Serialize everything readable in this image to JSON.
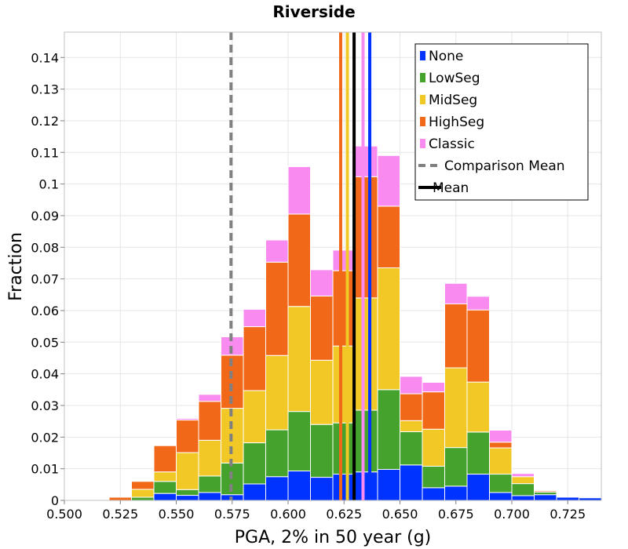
{
  "chart_data": {
    "type": "bar",
    "stacked": true,
    "title": "Riverside",
    "xlabel": "PGA, 2% in 50 year (g)",
    "ylabel": "Fraction",
    "xlim": [
      0.5,
      0.74
    ],
    "ylim": [
      0,
      0.148
    ],
    "bin_width": 0.01,
    "x_ticks": [
      0.5,
      0.525,
      0.55,
      0.575,
      0.6,
      0.625,
      0.65,
      0.675,
      0.7,
      0.725
    ],
    "x_tick_labels": [
      "0.500",
      "0.525",
      "0.550",
      "0.575",
      "0.600",
      "0.625",
      "0.650",
      "0.675",
      "0.700",
      "0.725"
    ],
    "y_ticks": [
      0,
      0.01,
      0.02,
      0.03,
      0.04,
      0.05,
      0.06,
      0.07,
      0.08,
      0.09,
      0.1,
      0.11,
      0.12,
      0.13,
      0.14
    ],
    "y_tick_labels": [
      "0",
      "0.01",
      "0.02",
      "0.03",
      "0.04",
      "0.05",
      "0.06",
      "0.07",
      "0.08",
      "0.09",
      "0.1",
      "0.11",
      "0.12",
      "0.13",
      "0.14"
    ],
    "grid": true,
    "legend_position": "top-right",
    "x": [
      0.515,
      0.525,
      0.535,
      0.545,
      0.555,
      0.565,
      0.575,
      0.585,
      0.595,
      0.605,
      0.615,
      0.625,
      0.635,
      0.645,
      0.655,
      0.665,
      0.675,
      0.685,
      0.695,
      0.705,
      0.715,
      0.725,
      0.735
    ],
    "series": [
      {
        "name": "None",
        "color": "#0033ff",
        "values": [
          0,
          0,
          0,
          0.0022,
          0.0016,
          0.0025,
          0.0018,
          0.0052,
          0.0075,
          0.0093,
          0.0073,
          0.0083,
          0.009,
          0.0098,
          0.0112,
          0.004,
          0.0045,
          0.0083,
          0.0025,
          0.0015,
          0.0018,
          0.001,
          0.0008
        ]
      },
      {
        "name": "LowSeg",
        "color": "#44a22d",
        "values": [
          0,
          0,
          0.001,
          0.0038,
          0.0018,
          0.0052,
          0.01,
          0.013,
          0.0148,
          0.0188,
          0.0167,
          0.0162,
          0.0195,
          0.0252,
          0.0105,
          0.0068,
          0.0122,
          0.0133,
          0.0058,
          0.0038,
          0.0008,
          0,
          0
        ]
      },
      {
        "name": "MidSeg",
        "color": "#f2c826",
        "values": [
          0,
          0,
          0.0025,
          0.003,
          0.0117,
          0.0113,
          0.0173,
          0.0165,
          0.0235,
          0.0332,
          0.0203,
          0.0243,
          0.0355,
          0.0385,
          0.0035,
          0.0117,
          0.0252,
          0.0158,
          0.0083,
          0.0022,
          0,
          0,
          0
        ]
      },
      {
        "name": "HighSeg",
        "color": "#f06818",
        "values": [
          0,
          0.001,
          0.0025,
          0.0083,
          0.0103,
          0.0123,
          0.0168,
          0.0202,
          0.0295,
          0.0292,
          0.0203,
          0.0238,
          0.0383,
          0.0195,
          0.0085,
          0.0118,
          0.0202,
          0.0228,
          0.0018,
          0,
          0.0004,
          0,
          0
        ]
      },
      {
        "name": "Classic",
        "color": "#f98af0",
        "values": [
          0,
          0,
          0,
          0,
          0.0005,
          0.0022,
          0.0058,
          0.0055,
          0.007,
          0.015,
          0.0083,
          0.0065,
          0.0097,
          0.016,
          0.0055,
          0.003,
          0.0065,
          0.0043,
          0.0038,
          0.001,
          0.0002,
          0,
          0
        ]
      }
    ],
    "vertical_lines": [
      {
        "name": "Comparison Mean",
        "x": 0.5745,
        "color": "#808080",
        "style": "dashed"
      },
      {
        "name": "Mean",
        "x": 0.6295,
        "color": "#000000",
        "style": "solid"
      },
      {
        "name": "None mean",
        "x": 0.6365,
        "color": "#0033ff",
        "style": "solid"
      },
      {
        "name": "HighSeg mean",
        "x": 0.6235,
        "color": "#f06818",
        "style": "solid"
      },
      {
        "name": "MidSeg mean",
        "x": 0.6265,
        "color": "#f2c826",
        "style": "solid"
      },
      {
        "name": "Classic mean",
        "x": 0.6335,
        "color": "#f98af0",
        "style": "solid"
      }
    ],
    "legend": [
      {
        "label": "None",
        "kind": "box",
        "color": "#0033ff"
      },
      {
        "label": "LowSeg",
        "kind": "box",
        "color": "#44a22d"
      },
      {
        "label": "MidSeg",
        "kind": "box",
        "color": "#f2c826"
      },
      {
        "label": "HighSeg",
        "kind": "box",
        "color": "#f06818"
      },
      {
        "label": "Classic",
        "kind": "box",
        "color": "#f98af0"
      },
      {
        "label": "Comparison Mean",
        "kind": "dashed-line",
        "color": "#808080"
      },
      {
        "label": "Mean",
        "kind": "solid-line",
        "color": "#000000"
      }
    ]
  }
}
